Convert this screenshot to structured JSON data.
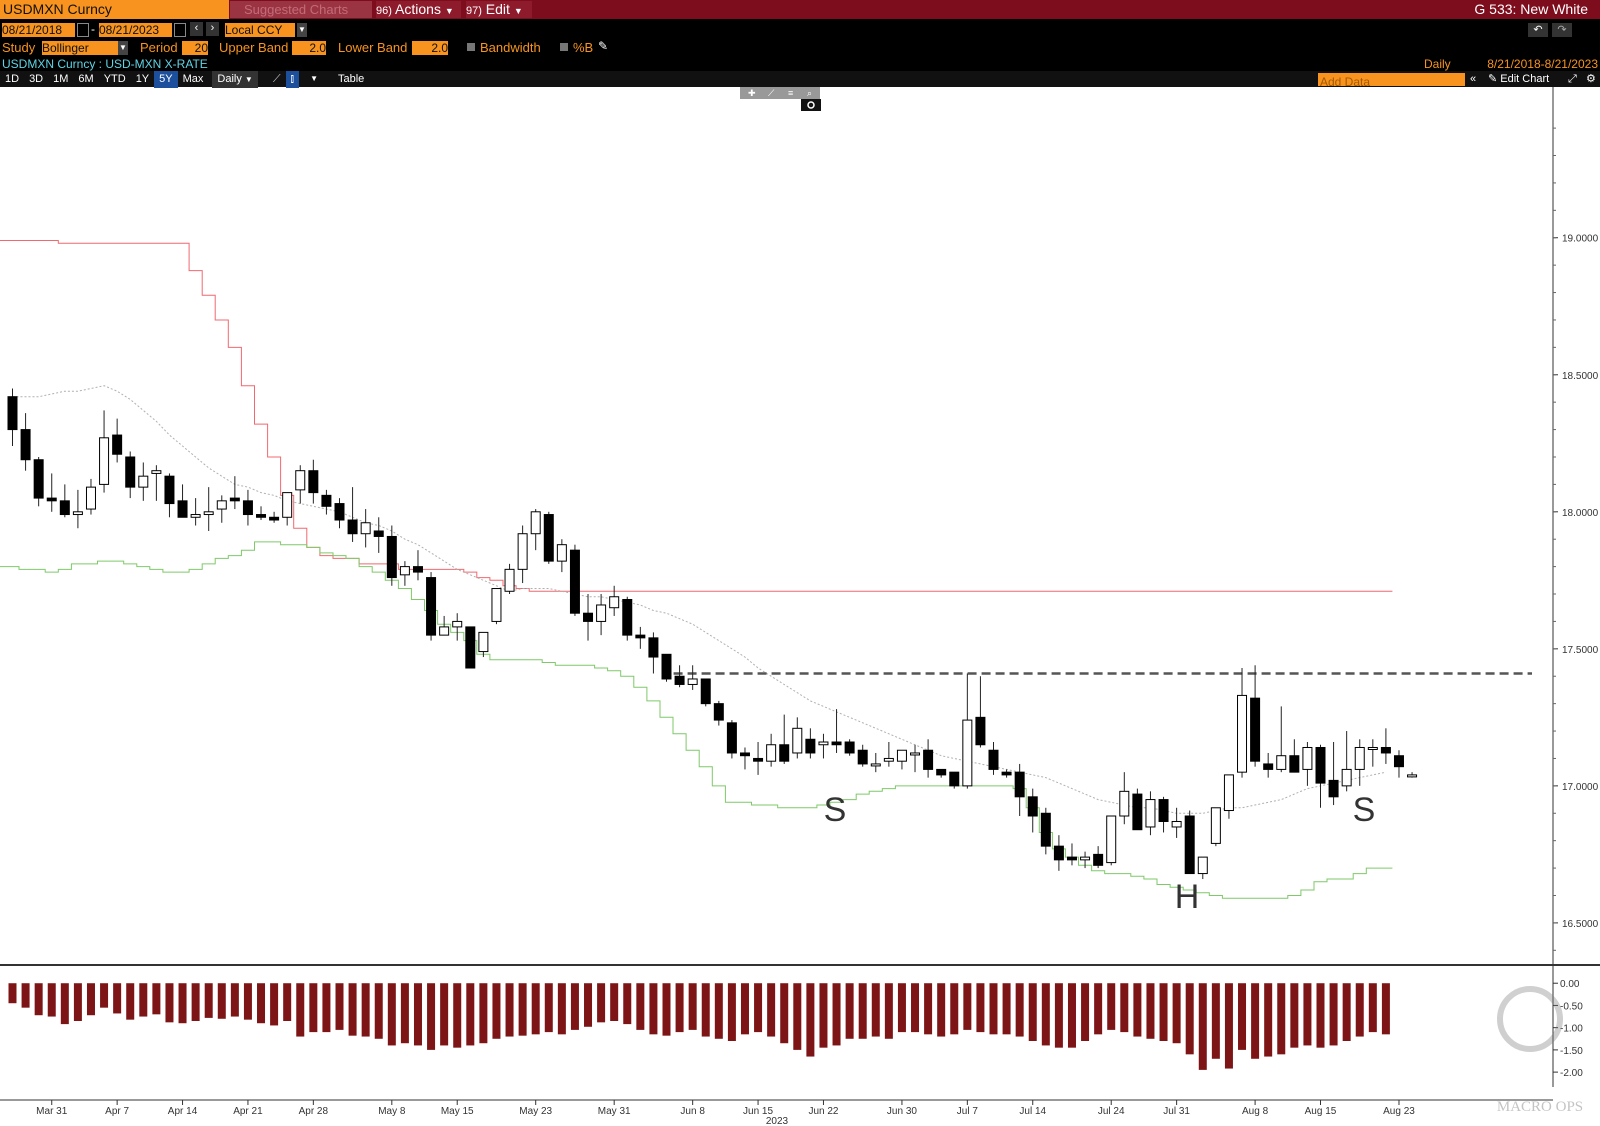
{
  "toolbar": {
    "ticker": "USDMXN Curncy",
    "suggested": "Suggested Charts",
    "suggested_num": "",
    "actions_num": "96)",
    "actions": "Actions",
    "edit_num": "97)",
    "edit": "Edit",
    "title": "G 533: New White",
    "date_from": "08/21/2018",
    "date_to": "08/21/2023",
    "currency": "Local CCY",
    "study_label": "Study",
    "study_value": "Bollinger",
    "period_label": "Period",
    "period_value": "20",
    "upper_label": "Upper Band",
    "upper_value": "2.0",
    "lower_label": "Lower Band",
    "lower_value": "2.0",
    "bandwidth_label": "Bandwidth",
    "pctb_label": "%B",
    "security_desc": "USDMXN Curncy : USD-MXN X-RATE",
    "frequency": "Daily",
    "range_text": "8/21/2018-8/21/2023",
    "periods": [
      "1D",
      "3D",
      "1M",
      "6M",
      "YTD",
      "1Y",
      "5Y",
      "Max"
    ],
    "active_period": "5Y",
    "freq_select": "Daily",
    "table_label": "Table",
    "add_data_placeholder": "Add Data",
    "edit_chart": "Edit Chart"
  },
  "annotations": {
    "s_left": "S",
    "h": "H",
    "s_right": "S"
  },
  "watermark": "MACRO OPS",
  "colors": {
    "upper": "#f0696f",
    "lower": "#7fc96a",
    "mid": "#b0b0b0",
    "pctb": "#7d1416",
    "accent": "#f7931e"
  },
  "chart_data": {
    "type": "candlestick",
    "title": "USDMXN Curncy : USD-MXN X-RATE",
    "year_label": "2023",
    "resistance_level": 17.41,
    "ylim": [
      16.35,
      19.55
    ],
    "yticks": [
      19.0,
      18.5,
      18.0,
      17.5,
      17.0,
      16.5
    ],
    "ytick_labels": [
      "19.0000",
      "18.5000",
      "18.0000",
      "17.5000",
      "17.0000",
      "16.5000"
    ],
    "xticks": [
      {
        "label": "Mar 31",
        "i": 3
      },
      {
        "label": "Apr 7",
        "i": 8
      },
      {
        "label": "Apr 14",
        "i": 13
      },
      {
        "label": "Apr 21",
        "i": 18
      },
      {
        "label": "Apr 28",
        "i": 23
      },
      {
        "label": "May 8",
        "i": 29
      },
      {
        "label": "May 15",
        "i": 34
      },
      {
        "label": "May 23",
        "i": 40
      },
      {
        "label": "May 31",
        "i": 46
      },
      {
        "label": "Jun 8",
        "i": 52
      },
      {
        "label": "Jun 15",
        "i": 57
      },
      {
        "label": "Jun 22",
        "i": 62
      },
      {
        "label": "Jun 30",
        "i": 68
      },
      {
        "label": "Jul 7",
        "i": 73
      },
      {
        "label": "Jul 14",
        "i": 78
      },
      {
        "label": "Jul 24",
        "i": 84
      },
      {
        "label": "Jul 31",
        "i": 89
      },
      {
        "label": "Aug 8",
        "i": 95
      },
      {
        "label": "Aug 15",
        "i": 100
      },
      {
        "label": "Aug 23",
        "i": 106
      }
    ],
    "candles": [
      [
        18.42,
        18.45,
        18.24,
        18.3
      ],
      [
        18.3,
        18.36,
        18.15,
        18.19
      ],
      [
        18.19,
        18.2,
        18.02,
        18.05
      ],
      [
        18.05,
        18.14,
        18.0,
        18.04
      ],
      [
        18.04,
        18.1,
        17.98,
        17.99
      ],
      [
        17.99,
        18.08,
        17.94,
        18.0
      ],
      [
        18.01,
        18.12,
        17.99,
        18.09
      ],
      [
        18.1,
        18.37,
        18.07,
        18.27
      ],
      [
        18.28,
        18.34,
        18.18,
        18.21
      ],
      [
        18.2,
        18.22,
        18.05,
        18.09
      ],
      [
        18.09,
        18.18,
        18.04,
        18.13
      ],
      [
        18.14,
        18.17,
        18.04,
        18.15
      ],
      [
        18.13,
        18.14,
        17.98,
        18.03
      ],
      [
        18.04,
        18.1,
        17.99,
        17.98
      ],
      [
        17.98,
        18.05,
        17.95,
        17.99
      ],
      [
        17.99,
        18.09,
        17.93,
        18.0
      ],
      [
        18.01,
        18.06,
        17.96,
        18.04
      ],
      [
        18.05,
        18.13,
        18.01,
        18.04
      ],
      [
        18.04,
        18.08,
        17.95,
        17.99
      ],
      [
        17.99,
        18.02,
        17.97,
        17.98
      ],
      [
        17.98,
        18.0,
        17.96,
        17.97
      ],
      [
        17.98,
        18.07,
        17.95,
        18.07
      ],
      [
        18.08,
        18.17,
        18.03,
        18.15
      ],
      [
        18.15,
        18.19,
        18.03,
        18.07
      ],
      [
        18.06,
        18.08,
        17.99,
        18.02
      ],
      [
        18.03,
        18.05,
        17.94,
        17.97
      ],
      [
        17.97,
        18.09,
        17.89,
        17.92
      ],
      [
        17.92,
        18.01,
        17.87,
        17.96
      ],
      [
        17.93,
        17.98,
        17.85,
        17.91
      ],
      [
        17.91,
        17.95,
        17.73,
        17.76
      ],
      [
        17.77,
        17.82,
        17.73,
        17.8
      ],
      [
        17.8,
        17.86,
        17.75,
        17.78
      ],
      [
        17.76,
        17.78,
        17.53,
        17.55
      ],
      [
        17.55,
        17.62,
        17.55,
        17.58
      ],
      [
        17.58,
        17.63,
        17.53,
        17.6
      ],
      [
        17.58,
        17.58,
        17.44,
        17.43
      ],
      [
        17.49,
        17.56,
        17.47,
        17.56
      ],
      [
        17.6,
        17.72,
        17.59,
        17.72
      ],
      [
        17.71,
        17.81,
        17.7,
        17.79
      ],
      [
        17.79,
        17.95,
        17.74,
        17.92
      ],
      [
        17.92,
        18.01,
        17.86,
        18.0
      ],
      [
        17.99,
        18.0,
        17.81,
        17.82
      ],
      [
        17.82,
        17.9,
        17.78,
        17.88
      ],
      [
        17.86,
        17.88,
        17.62,
        17.63
      ],
      [
        17.63,
        17.7,
        17.53,
        17.6
      ],
      [
        17.6,
        17.7,
        17.55,
        17.66
      ],
      [
        17.65,
        17.73,
        17.62,
        17.69
      ],
      [
        17.68,
        17.69,
        17.53,
        17.55
      ],
      [
        17.55,
        17.58,
        17.5,
        17.54
      ],
      [
        17.54,
        17.56,
        17.41,
        17.47
      ],
      [
        17.48,
        17.48,
        17.38,
        17.39
      ],
      [
        17.4,
        17.44,
        17.36,
        17.37
      ],
      [
        17.37,
        17.44,
        17.35,
        17.39
      ],
      [
        17.39,
        17.39,
        17.29,
        17.3
      ],
      [
        17.3,
        17.31,
        17.22,
        17.24
      ],
      [
        17.23,
        17.24,
        17.1,
        17.12
      ],
      [
        17.12,
        17.14,
        17.06,
        17.11
      ],
      [
        17.1,
        17.16,
        17.04,
        17.09
      ],
      [
        17.09,
        17.19,
        17.07,
        17.15
      ],
      [
        17.15,
        17.26,
        17.08,
        17.09
      ],
      [
        17.12,
        17.25,
        17.1,
        17.21
      ],
      [
        17.17,
        17.21,
        17.1,
        17.12
      ],
      [
        17.15,
        17.19,
        17.1,
        17.16
      ],
      [
        17.16,
        17.28,
        17.12,
        17.15
      ],
      [
        17.16,
        17.17,
        17.11,
        17.12
      ],
      [
        17.13,
        17.15,
        17.07,
        17.08
      ],
      [
        17.08,
        17.12,
        17.05,
        17.08
      ],
      [
        17.09,
        17.16,
        17.07,
        17.1
      ],
      [
        17.09,
        17.13,
        17.06,
        17.13
      ],
      [
        17.12,
        17.15,
        17.05,
        17.12
      ],
      [
        17.13,
        17.17,
        17.03,
        17.06
      ],
      [
        17.06,
        17.06,
        17.03,
        17.04
      ],
      [
        17.05,
        17.05,
        16.99,
        17.0
      ],
      [
        17.0,
        17.41,
        16.99,
        17.24
      ],
      [
        17.25,
        17.4,
        17.14,
        17.15
      ],
      [
        17.13,
        17.16,
        17.04,
        17.06
      ],
      [
        17.05,
        17.06,
        17.03,
        17.04
      ],
      [
        17.05,
        17.08,
        16.89,
        16.96
      ],
      [
        16.96,
        16.99,
        16.83,
        16.89
      ],
      [
        16.9,
        16.92,
        16.75,
        16.78
      ],
      [
        16.78,
        16.82,
        16.69,
        16.73
      ],
      [
        16.74,
        16.79,
        16.71,
        16.73
      ],
      [
        16.73,
        16.76,
        16.7,
        16.74
      ],
      [
        16.75,
        16.78,
        16.7,
        16.71
      ],
      [
        16.72,
        16.89,
        16.71,
        16.89
      ],
      [
        16.89,
        17.05,
        16.86,
        16.98
      ],
      [
        16.97,
        16.99,
        16.84,
        16.84
      ],
      [
        16.85,
        16.98,
        16.82,
        16.95
      ],
      [
        16.95,
        16.96,
        16.83,
        16.87
      ],
      [
        16.85,
        16.92,
        16.81,
        16.87
      ],
      [
        16.89,
        16.91,
        16.69,
        16.68
      ],
      [
        16.68,
        16.74,
        16.66,
        16.74
      ],
      [
        16.79,
        16.92,
        16.78,
        16.92
      ],
      [
        16.91,
        17.04,
        16.88,
        17.04
      ],
      [
        17.05,
        17.43,
        17.03,
        17.33
      ],
      [
        17.32,
        17.44,
        17.07,
        17.09
      ],
      [
        17.08,
        17.12,
        17.03,
        17.06
      ],
      [
        17.06,
        17.29,
        17.05,
        17.11
      ],
      [
        17.11,
        17.17,
        17.05,
        17.05
      ],
      [
        17.06,
        17.16,
        17.0,
        17.14
      ],
      [
        17.14,
        17.15,
        16.92,
        17.01
      ],
      [
        17.02,
        17.16,
        16.93,
        16.96
      ],
      [
        17.0,
        17.2,
        16.98,
        17.06
      ],
      [
        17.06,
        17.17,
        17.0,
        17.14
      ],
      [
        17.14,
        17.17,
        17.07,
        17.14
      ],
      [
        17.14,
        17.21,
        17.08,
        17.12
      ],
      [
        17.11,
        17.13,
        17.03,
        17.07
      ],
      [
        17.04,
        17.05,
        17.03,
        17.04
      ]
    ],
    "upper_band": [
      18.99,
      18.99,
      18.99,
      18.99,
      18.98,
      18.98,
      18.98,
      18.98,
      18.98,
      18.98,
      18.98,
      18.98,
      18.98,
      18.98,
      18.88,
      18.79,
      18.7,
      18.6,
      18.46,
      18.32,
      18.2,
      18.06,
      17.94,
      17.87,
      17.84,
      17.83,
      17.83,
      17.81,
      17.81,
      17.81,
      17.79,
      17.79,
      17.79,
      17.79,
      17.79,
      17.78,
      17.76,
      17.75,
      17.73,
      17.72,
      17.71,
      17.71,
      17.71,
      17.71,
      17.71,
      17.71,
      17.71,
      17.71,
      17.71,
      17.71,
      17.71,
      17.71,
      17.71,
      17.71,
      17.71,
      17.71,
      17.71,
      17.71,
      17.71,
      17.71,
      17.71,
      17.71,
      17.71,
      17.71,
      17.71,
      17.71,
      17.71,
      17.71,
      17.71,
      17.71,
      17.71,
      17.71,
      17.71,
      17.71,
      17.71,
      17.71,
      17.71,
      17.71,
      17.71,
      17.71,
      17.71,
      17.71,
      17.71,
      17.71,
      17.71,
      17.71,
      17.71,
      17.71,
      17.71,
      17.71,
      17.71,
      17.71,
      17.71,
      17.71,
      17.71,
      17.71,
      17.71,
      17.71,
      17.71,
      17.71,
      17.71,
      17.71,
      17.71,
      17.71,
      17.71,
      17.71
    ],
    "middle_band": [
      18.42,
      18.42,
      18.42,
      18.43,
      18.44,
      18.44,
      18.45,
      18.46,
      18.44,
      18.41,
      18.37,
      18.33,
      18.28,
      18.24,
      18.2,
      18.16,
      18.13,
      18.1,
      18.09,
      18.07,
      18.06,
      18.04,
      18.03,
      18.02,
      18.01,
      18.0,
      17.98,
      17.96,
      17.95,
      17.93,
      17.9,
      17.88,
      17.85,
      17.82,
      17.79,
      17.77,
      17.75,
      17.73,
      17.71,
      17.72,
      17.72,
      17.72,
      17.71,
      17.7,
      17.69,
      17.69,
      17.68,
      17.67,
      17.66,
      17.64,
      17.63,
      17.61,
      17.59,
      17.56,
      17.53,
      17.5,
      17.47,
      17.43,
      17.4,
      17.37,
      17.34,
      17.31,
      17.29,
      17.27,
      17.25,
      17.23,
      17.21,
      17.19,
      17.17,
      17.15,
      17.13,
      17.11,
      17.1,
      17.09,
      17.08,
      17.07,
      17.06,
      17.05,
      17.04,
      17.03,
      17.01,
      16.99,
      16.97,
      16.95,
      16.94,
      16.93,
      16.92,
      16.92,
      16.91,
      16.9,
      16.9,
      16.9,
      16.91,
      16.92,
      16.92,
      16.93,
      16.94,
      16.95,
      16.97,
      16.99,
      17.0,
      17.01,
      17.02,
      17.03,
      17.04,
      17.05
    ],
    "lower_band": [
      17.8,
      17.79,
      17.79,
      17.78,
      17.79,
      17.81,
      17.81,
      17.82,
      17.82,
      17.81,
      17.8,
      17.79,
      17.78,
      17.78,
      17.79,
      17.81,
      17.83,
      17.84,
      17.86,
      17.89,
      17.89,
      17.88,
      17.88,
      17.87,
      17.85,
      17.84,
      17.83,
      17.8,
      17.78,
      17.75,
      17.72,
      17.68,
      17.64,
      17.59,
      17.56,
      17.53,
      17.48,
      17.46,
      17.46,
      17.46,
      17.46,
      17.45,
      17.44,
      17.44,
      17.44,
      17.43,
      17.42,
      17.4,
      17.36,
      17.31,
      17.25,
      17.19,
      17.13,
      17.07,
      17.0,
      16.94,
      16.94,
      16.93,
      16.93,
      16.92,
      16.92,
      16.92,
      16.93,
      16.94,
      16.95,
      16.97,
      16.98,
      16.99,
      17.0,
      17.0,
      17.0,
      17.0,
      17.0,
      17.0,
      17.0,
      17.0,
      17.0,
      16.99,
      16.92,
      16.83,
      16.77,
      16.74,
      16.71,
      16.69,
      16.68,
      16.68,
      16.67,
      16.66,
      16.64,
      16.63,
      16.62,
      16.61,
      16.6,
      16.59,
      16.59,
      16.59,
      16.59,
      16.59,
      16.6,
      16.62,
      16.65,
      16.66,
      16.66,
      16.68,
      16.7,
      16.7
    ],
    "pctb": [
      -0.45,
      -0.55,
      -0.72,
      -0.75,
      -0.92,
      -0.85,
      -0.72,
      -0.55,
      -0.68,
      -0.82,
      -0.75,
      -0.7,
      -0.88,
      -0.9,
      -0.85,
      -0.78,
      -0.8,
      -0.75,
      -0.82,
      -0.9,
      -0.95,
      -0.85,
      -1.2,
      -1.1,
      -1.1,
      -1.05,
      -1.18,
      -1.2,
      -1.25,
      -1.4,
      -1.35,
      -1.4,
      -1.5,
      -1.4,
      -1.45,
      -1.4,
      -1.35,
      -1.25,
      -1.2,
      -1.18,
      -1.15,
      -1.1,
      -1.15,
      -1.05,
      -0.98,
      -0.88,
      -0.85,
      -0.92,
      -1.05,
      -1.15,
      -1.18,
      -1.1,
      -1.05,
      -1.2,
      -1.25,
      -1.3,
      -1.15,
      -1.1,
      -1.2,
      -1.35,
      -1.5,
      -1.65,
      -1.45,
      -1.4,
      -1.25,
      -1.25,
      -1.2,
      -1.25,
      -1.1,
      -1.1,
      -1.15,
      -1.2,
      -1.15,
      -1.05,
      -1.1,
      -1.15,
      -1.15,
      -1.2,
      -1.3,
      -1.4,
      -1.45,
      -1.45,
      -1.3,
      -1.15,
      -1.05,
      -1.1,
      -1.2,
      -1.25,
      -1.3,
      -1.35,
      -1.6,
      -1.95,
      -1.7,
      -1.92,
      -1.5,
      -1.7,
      -1.65,
      -1.6,
      -1.45,
      -1.4,
      -1.45,
      -1.4,
      -1.3,
      -1.2,
      -1.1,
      -1.15
    ],
    "pctb_yticks": [
      0.0,
      -0.5,
      -1.0,
      -1.5,
      -2.0
    ],
    "pctb_ytick_labels": [
      "0.00",
      "-0.50",
      "-1.00",
      "-1.50",
      "-2.00"
    ]
  }
}
